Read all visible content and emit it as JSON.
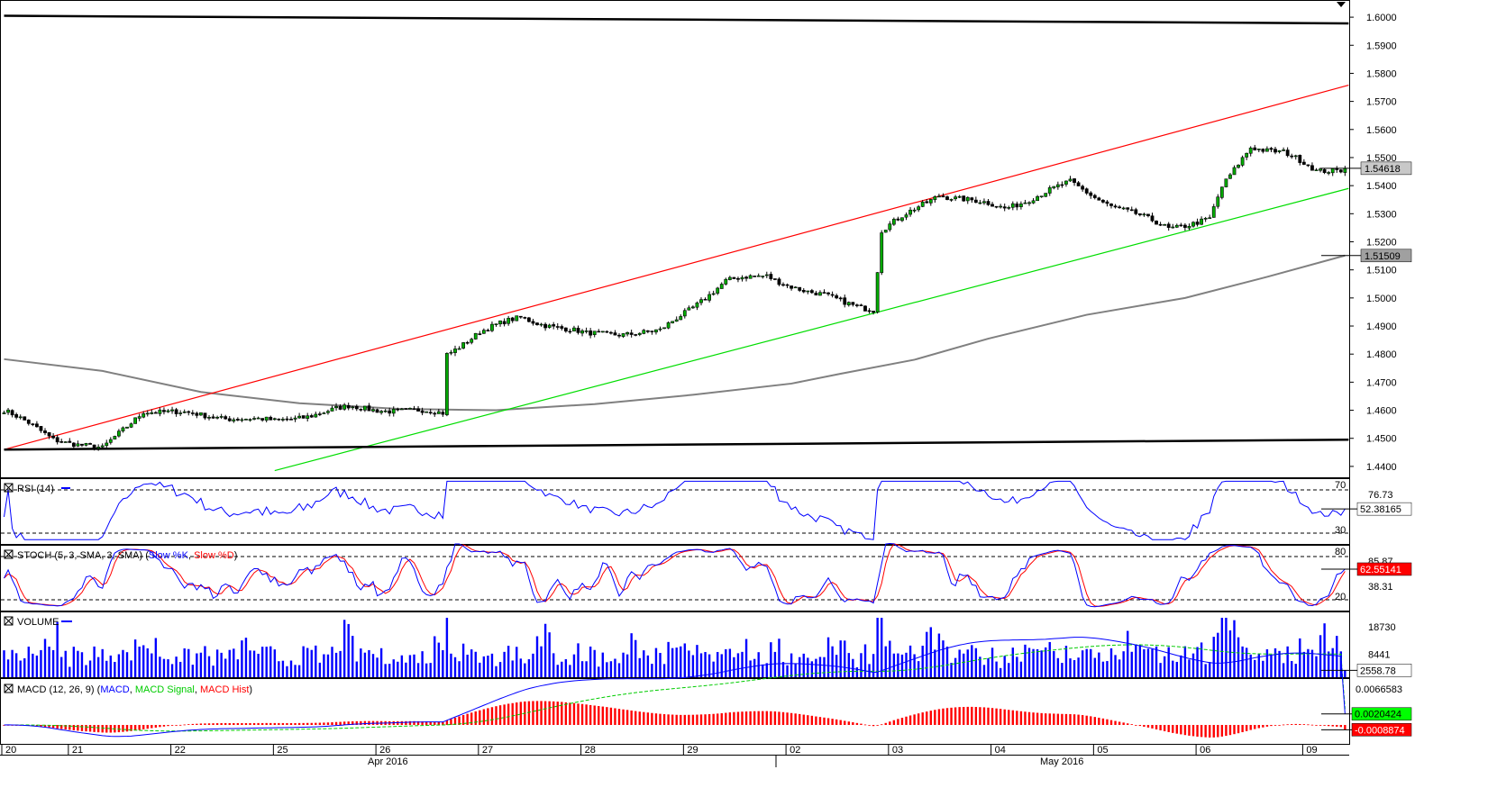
{
  "chart_data": {
    "type": "candlestick",
    "instrument": "",
    "price_axis": {
      "ylim": [
        1.4358,
        1.6058
      ],
      "ticks": [
        "1.6000",
        "1.5900",
        "1.5800",
        "1.5700",
        "1.5600",
        "1.5500",
        "1.5400",
        "1.5300",
        "1.5200",
        "1.5100",
        "1.5000",
        "1.4900",
        "1.4800",
        "1.4700",
        "1.4600",
        "1.4500",
        "1.4400"
      ],
      "tick_values": [
        1.6,
        1.59,
        1.58,
        1.57,
        1.56,
        1.55,
        1.54,
        1.53,
        1.52,
        1.51,
        1.5,
        1.49,
        1.48,
        1.47,
        1.46,
        1.45,
        1.44
      ],
      "last_price_label": "1.54618",
      "last_price": 1.54618,
      "ma_label": "1.51509",
      "ma_value": 1.51509
    },
    "time_axis": {
      "day_labels": [
        "20",
        "21",
        "22",
        "25",
        "26",
        "27",
        "28",
        "29",
        "02",
        "03",
        "04",
        "05",
        "06",
        "09"
      ],
      "month_labels": [
        "Apr 2016",
        "May 2016"
      ]
    },
    "anchors": [
      {
        "bar": 0,
        "close": 1.46
      },
      {
        "bar": 12,
        "close": 1.45
      },
      {
        "bar": 24,
        "close": 1.446
      },
      {
        "bar": 34,
        "close": 1.46
      },
      {
        "bar": 50,
        "close": 1.458
      },
      {
        "bar": 66,
        "close": 1.456
      },
      {
        "bar": 84,
        "close": 1.461
      },
      {
        "bar": 107,
        "close": 1.459
      },
      {
        "bar": 108,
        "close": 1.48
      },
      {
        "bar": 116,
        "close": 1.488
      },
      {
        "bar": 126,
        "close": 1.493
      },
      {
        "bar": 142,
        "close": 1.487
      },
      {
        "bar": 160,
        "close": 1.488
      },
      {
        "bar": 176,
        "close": 1.506
      },
      {
        "bar": 186,
        "close": 1.508
      },
      {
        "bar": 196,
        "close": 1.502
      },
      {
        "bar": 212,
        "close": 1.496
      },
      {
        "bar": 214,
        "close": 1.524
      },
      {
        "bar": 228,
        "close": 1.537
      },
      {
        "bar": 244,
        "close": 1.532
      },
      {
        "bar": 260,
        "close": 1.541
      },
      {
        "bar": 270,
        "close": 1.533
      },
      {
        "bar": 284,
        "close": 1.525
      },
      {
        "bar": 294,
        "close": 1.528
      },
      {
        "bar": 297,
        "close": 1.539
      },
      {
        "bar": 304,
        "close": 1.554
      },
      {
        "bar": 312,
        "close": 1.552
      },
      {
        "bar": 320,
        "close": 1.545
      },
      {
        "bar": 327,
        "close": 1.5462
      }
    ],
    "trendlines": [
      {
        "name": "channel-upper",
        "color": "#ff0000",
        "points": [
          [
            0,
            1.446
          ],
          [
            327,
            1.5758
          ]
        ]
      },
      {
        "name": "channel-lower",
        "color": "#00dd00",
        "points": [
          [
            66,
            1.4385
          ],
          [
            327,
            1.539
          ]
        ]
      },
      {
        "name": "resistance",
        "color": "#000000",
        "points": [
          [
            0,
            1.6005
          ],
          [
            327,
            1.5978
          ]
        ]
      },
      {
        "name": "support",
        "color": "#000000",
        "points": [
          [
            0,
            1.446
          ],
          [
            327,
            1.4495
          ]
        ]
      }
    ],
    "moving_average": {
      "color": "#808080",
      "points": [
        [
          0,
          1.4782
        ],
        [
          24,
          1.474
        ],
        [
          48,
          1.4665
        ],
        [
          72,
          1.4625
        ],
        [
          96,
          1.4605
        ],
        [
          120,
          1.46
        ],
        [
          144,
          1.4622
        ],
        [
          168,
          1.4655
        ],
        [
          192,
          1.4695
        ],
        [
          204,
          1.473
        ],
        [
          222,
          1.478
        ],
        [
          240,
          1.4855
        ],
        [
          264,
          1.494
        ],
        [
          288,
          1.5
        ],
        [
          308,
          1.5075
        ],
        [
          327,
          1.5151
        ]
      ]
    },
    "indicators": {
      "rsi": {
        "label": "RSI (14)",
        "levels": [
          70,
          30
        ],
        "level_labels": [
          "70",
          "30"
        ],
        "top_label": "76.73",
        "value_label": "52.38165",
        "value": 52.38165,
        "ylim": [
          20,
          80
        ]
      },
      "stoch": {
        "label_prefix": "STOCH (5, 3, SMA, 3, SMA)",
        "k_label": "Slow %K",
        "d_label": "Slow %D",
        "levels": [
          80,
          20
        ],
        "level_labels": [
          "80",
          "20"
        ],
        "top_label": "85.87",
        "mid_label": "38.31",
        "value_label": "62.55141",
        "value": 62.55141,
        "ylim": [
          5,
          95
        ]
      },
      "volume": {
        "label": "VOLUME",
        "ticks": [
          "18730",
          "8441"
        ],
        "tick_values": [
          18730,
          8441
        ],
        "value_label": "2558.78",
        "value": 2558.78,
        "ylim": [
          0,
          24000
        ]
      },
      "macd": {
        "label_prefix": "MACD (12, 26, 9)",
        "macd_label": "MACD",
        "signal_label": "MACD Signal",
        "hist_label": "MACD Hist",
        "tick_label": "0.0066583",
        "tick_value": 0.0066583,
        "macd_value_label": "0.0020424",
        "macd_value": 0.0020424,
        "hist_value_label": "-0.0008874",
        "hist_value": -0.0008874,
        "ylim": [
          -0.0035,
          0.0085
        ]
      }
    },
    "colors": {
      "up": "#00aa00",
      "down": "#000000",
      "rsi": "#0000ff",
      "stoch_k": "#0000ff",
      "stoch_d": "#ff0000",
      "volume": "#0000ff",
      "macd": "#0000ff",
      "signal": "#00cc00",
      "hist": "#ff0000",
      "price_box": "#c8c8c8",
      "ma_box": "#a0a0a0",
      "macd_box": "#00ff00",
      "hist_box": "#ff0000"
    }
  }
}
